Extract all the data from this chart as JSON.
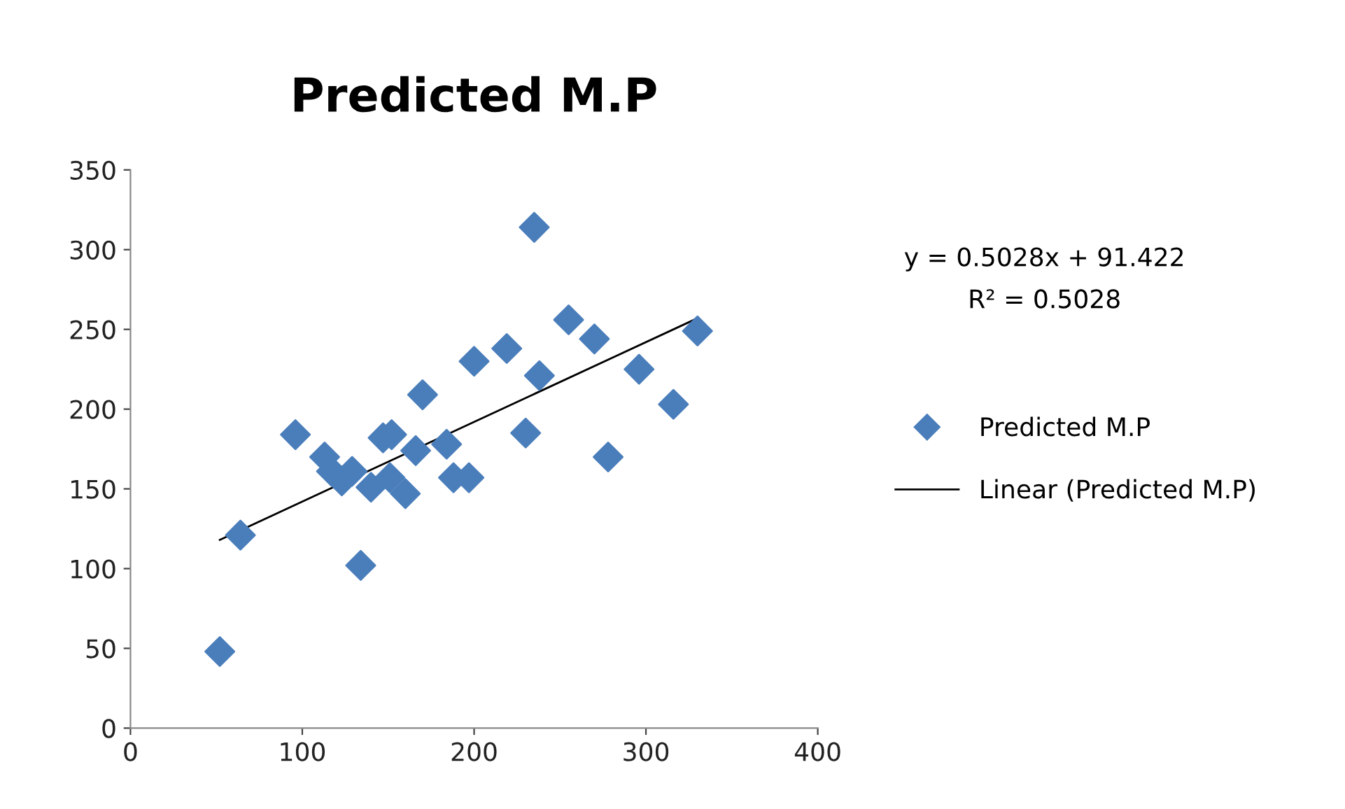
{
  "chart_data": {
    "type": "scatter",
    "title": "Predicted M.P",
    "series": [
      {
        "name": "Predicted M.P",
        "color": "#4a7ebb",
        "marker": "diamond",
        "x": [
          52,
          64,
          96,
          113,
          117,
          123,
          129,
          134,
          140,
          147,
          152,
          151,
          160,
          166,
          170,
          184,
          188,
          197,
          200,
          219,
          230,
          235,
          238,
          255,
          270,
          278,
          296,
          316,
          330
        ],
        "values": [
          48,
          121,
          184,
          170,
          161,
          155,
          161,
          102,
          151,
          182,
          184,
          157,
          147,
          174,
          209,
          178,
          157,
          157,
          230,
          238,
          185,
          314,
          221,
          256,
          244,
          170,
          225,
          203,
          249
        ]
      },
      {
        "name": "Linear (Predicted M.P)",
        "type": "line",
        "color": "#000000",
        "marker": "none",
        "line_style": "solid",
        "x": [
          52,
          330
        ],
        "values": [
          118,
          257
        ]
      }
    ],
    "annotations": [
      "y = 0.5028x + 91.422",
      "R² = 0.5028"
    ],
    "xlim": [
      0,
      400
    ],
    "xticks": [
      0,
      100,
      200,
      300,
      400
    ],
    "ylim": [
      0,
      350
    ],
    "yticks": [
      0,
      50,
      100,
      150,
      200,
      250,
      300,
      350
    ],
    "grid": false,
    "legend": "right"
  }
}
